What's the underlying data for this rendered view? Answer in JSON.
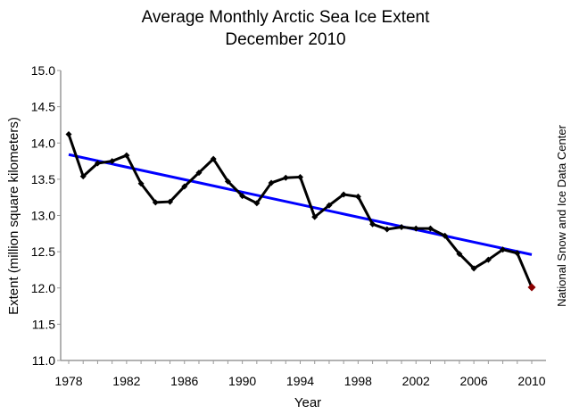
{
  "chart_data": {
    "type": "line",
    "title": "Average Monthly Arctic Sea Ice Extent",
    "subtitle": "December 2010",
    "xlabel": "Year",
    "ylabel": "Extent (million square kilometers)",
    "credit": "National Snow and Ice Data Center",
    "xlim": [
      1978,
      2010
    ],
    "ylim": [
      11.0,
      15.0
    ],
    "xticks": [
      "1978",
      "1982",
      "1986",
      "1990",
      "1994",
      "1998",
      "2002",
      "2006",
      "2010"
    ],
    "yticks": [
      "11.0",
      "11.5",
      "12.0",
      "12.5",
      "13.0",
      "13.5",
      "14.0",
      "14.5",
      "15.0"
    ],
    "grid": false,
    "series": [
      {
        "color": "#000000",
        "highlight_last_color": "#8b0000",
        "x": [
          1978,
          1979,
          1980,
          1981,
          1982,
          1983,
          1984,
          1985,
          1986,
          1987,
          1988,
          1989,
          1990,
          1991,
          1992,
          1993,
          1994,
          1995,
          1996,
          1997,
          1998,
          1999,
          2000,
          2001,
          2002,
          2003,
          2004,
          2005,
          2006,
          2007,
          2008,
          2009,
          2010
        ],
        "y": [
          14.12,
          13.54,
          13.72,
          13.75,
          13.83,
          13.44,
          13.18,
          13.19,
          13.4,
          13.59,
          13.78,
          13.47,
          13.27,
          13.17,
          13.45,
          13.52,
          13.53,
          12.98,
          13.14,
          13.29,
          13.26,
          12.88,
          12.81,
          12.84,
          12.82,
          12.82,
          12.72,
          12.47,
          12.27,
          12.39,
          12.53,
          12.48,
          12.01
        ]
      },
      {
        "type": "trend",
        "color": "#0000ff",
        "x": [
          1978,
          2010
        ],
        "y": [
          13.84,
          12.46
        ]
      }
    ]
  }
}
